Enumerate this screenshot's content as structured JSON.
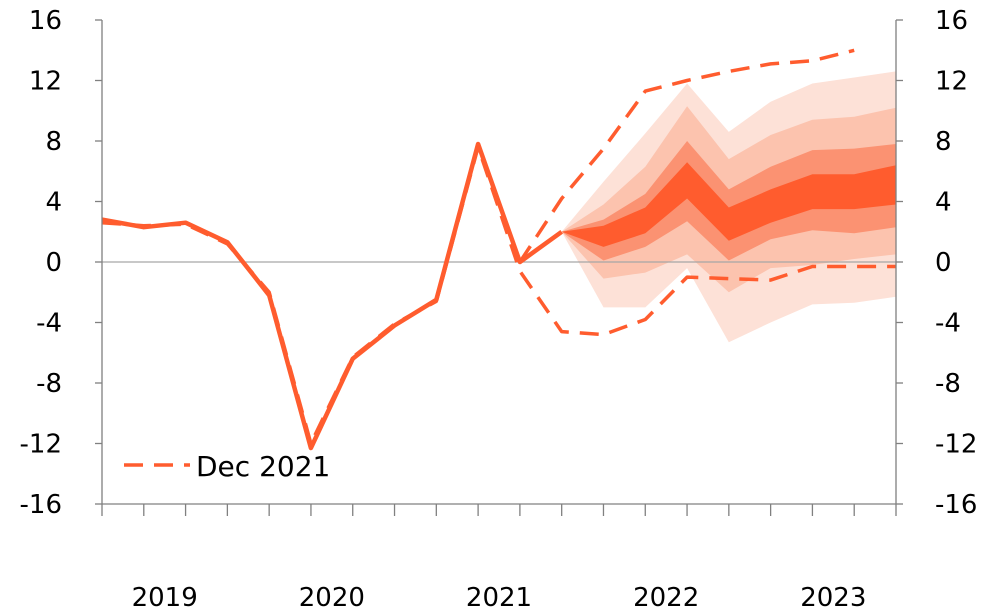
{
  "chart_data": {
    "type": "line",
    "title": "",
    "xlabel": "",
    "ylabel": "",
    "ylim": [
      -16,
      16
    ],
    "y_ticks": [
      "16",
      "12",
      "8",
      "4",
      "0",
      "-4",
      "-8",
      "-12",
      "-16"
    ],
    "x_labels": [
      "2019",
      "2020",
      "2021",
      "2022",
      "2023"
    ],
    "quarters": [
      "2019Q1",
      "2019Q2",
      "2019Q3",
      "2019Q4",
      "2020Q1",
      "2020Q2",
      "2020Q3",
      "2020Q4",
      "2021Q1",
      "2021Q2",
      "2021Q3",
      "2021Q4",
      "2022Q1",
      "2022Q2",
      "2022Q3",
      "2022Q4",
      "2023Q1",
      "2023Q2",
      "2023Q3",
      "2023Q4"
    ],
    "grid": false,
    "legend_position": "bottom-left",
    "series": [
      {
        "name": "",
        "style": "solid",
        "color": "#ff5c2e",
        "values": [
          2.8,
          2.3,
          2.6,
          1.3,
          -2.2,
          -12.3,
          -6.4,
          -4.2,
          -2.5,
          7.8,
          0.0,
          2.0,
          null,
          null,
          null,
          null,
          null,
          null,
          null,
          null
        ]
      },
      {
        "name": "Dec 2021",
        "style": "dashed",
        "color": "#ff5c2e",
        "values": [
          2.6,
          2.4,
          2.5,
          1.2,
          -2.0,
          -12.0,
          -6.3,
          -4.1,
          -2.6,
          7.6,
          -0.6,
          -4.6,
          -4.8,
          -3.8,
          -1.0,
          -1.1,
          -1.2,
          -0.3,
          -0.3,
          -0.3
        ]
      },
      {
        "name": "",
        "style": "dashed",
        "color": "#ff5c2e",
        "values": [
          null,
          null,
          null,
          null,
          null,
          null,
          null,
          null,
          null,
          null,
          0.0,
          4.2,
          7.5,
          11.3,
          12.0,
          12.6,
          13.1,
          13.3,
          14.0,
          null
        ]
      }
    ],
    "fan": {
      "start_index": 11,
      "bands": [
        {
          "color": "#fde1d7",
          "lower": [
            2.0,
            -3.0,
            -3.0,
            -0.4,
            -5.3,
            -4.0,
            -2.8,
            -2.7,
            -2.3
          ],
          "upper": [
            2.0,
            5.3,
            8.5,
            11.8,
            8.6,
            10.6,
            11.8,
            12.2,
            12.6
          ]
        },
        {
          "color": "#fcc3ae",
          "lower": [
            2.0,
            -1.1,
            -0.7,
            0.5,
            -2.0,
            -0.4,
            -0.2,
            0.2,
            0.5
          ],
          "upper": [
            2.0,
            3.8,
            6.3,
            10.3,
            6.8,
            8.4,
            9.4,
            9.6,
            10.2
          ]
        },
        {
          "color": "#fb9272",
          "lower": [
            2.0,
            0.1,
            1.0,
            2.7,
            0.1,
            1.5,
            2.1,
            1.9,
            2.3
          ],
          "upper": [
            2.0,
            2.8,
            4.5,
            8.0,
            4.8,
            6.3,
            7.4,
            7.5,
            7.8
          ]
        },
        {
          "color": "#ff5c2e",
          "lower": [
            2.0,
            1.0,
            1.9,
            4.2,
            1.4,
            2.6,
            3.5,
            3.5,
            3.8
          ],
          "upper": [
            2.0,
            2.4,
            3.6,
            6.6,
            3.6,
            4.8,
            5.8,
            5.8,
            6.4
          ]
        }
      ]
    },
    "colors": {
      "line": "#ff5c2e",
      "axis": "#808080",
      "zero_line": "#a6a6a6"
    }
  },
  "legend": {
    "dashed_label": "Dec 2021"
  }
}
